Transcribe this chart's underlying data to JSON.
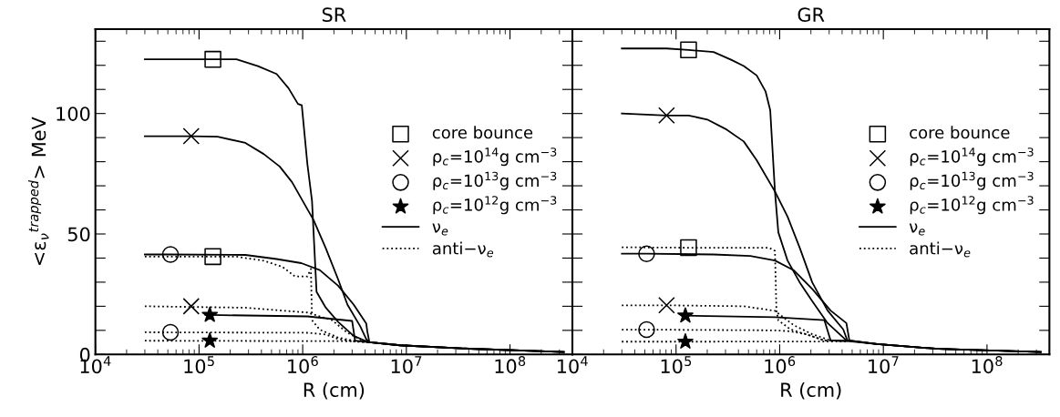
{
  "chart_data": [
    {
      "type": "line",
      "title": "SR",
      "xlabel": "R (cm)",
      "ylabel": "<ε$_{ν}$$^{trapped}$> MeV",
      "log": "x",
      "legend": "right",
      "grid": false,
      "xlim": [
        10000,
        400000000
      ],
      "ylim": [
        0,
        135
      ],
      "xticks": [
        {
          "value": 10000,
          "label": "10$^{4}$"
        },
        {
          "value": 100000,
          "label": "10$^{5}$"
        },
        {
          "value": 1000000,
          "label": "10$^{6}$"
        },
        {
          "value": 10000000,
          "label": "10$^{7}$"
        },
        {
          "value": 100000000,
          "label": "10$^{8}$"
        }
      ],
      "yticks": [
        0,
        {
          "value": 10,
          "label": null
        },
        {
          "value": 20,
          "label": null
        },
        {
          "value": 30,
          "label": null
        },
        {
          "value": 40,
          "label": null
        },
        50,
        {
          "value": 60,
          "label": null
        },
        {
          "value": 70,
          "label": null
        },
        {
          "value": 80,
          "label": null
        },
        {
          "value": 90,
          "label": null
        },
        100,
        {
          "value": 110,
          "label": null
        },
        {
          "value": 120,
          "label": null
        },
        {
          "value": 130,
          "label": null
        }
      ],
      "series": [
        {
          "type": "scatter",
          "name": "core bounce",
          "marker": "square",
          "color": "#000000",
          "x": [
            136000.0,
            136000.0
          ],
          "values": [
            122.5,
            40.6
          ]
        },
        {
          "type": "scatter",
          "name": "ρ$_{c}$=10$^{14}$g cm$^{−3}$",
          "marker": "cross",
          "color": "#000000",
          "x": [
            84000.0,
            84000.0
          ],
          "values": [
            90.6,
            20
          ]
        },
        {
          "type": "scatter",
          "name": "ρ$_{c}$=10$^{13}$g cm$^{−3}$",
          "marker": "circle",
          "color": "#000000",
          "x": [
            53000.0,
            53000.0
          ],
          "values": [
            41.5,
            9.2
          ]
        },
        {
          "type": "scatter",
          "name": "ρ$_{c}$=10$^{12}$g cm$^{−3}$",
          "marker": "star",
          "color": "#000000",
          "x": [
            127000.0,
            127000.0
          ],
          "values": [
            16.4,
            5.7
          ]
        },
        {
          "name": "ν$_{e}$",
          "line_style": "solid",
          "color": "#000000",
          "x": [
            30000.0,
            136000.0,
            230000.0,
            370000.0,
            560000.0,
            730000.0,
            900000.0,
            980000.0,
            1110000.0,
            1230000.0,
            1360000.0,
            1670000.0,
            2200000.0,
            3100000.0,
            4000000.0,
            4400000.0,
            8700000.0,
            34000000.0,
            330000000.0
          ],
          "values": [
            122.5,
            122.5,
            122.5,
            119.7,
            116.4,
            110.5,
            104,
            103.4,
            79,
            63.7,
            26,
            19.4,
            13.5,
            7.7,
            5.7,
            5.1,
            3.8,
            2.5,
            1.0
          ]
        },
        {
          "name": "anti−ν$_{e}$",
          "line_style": "dotted",
          "color": "#000000",
          "x": [
            30000.0,
            230000.0,
            420000.0,
            640000.0,
            840000.0,
            1110000.0,
            1200000.0,
            1230000.0,
            1460000.0,
            2200000.0,
            3300000.0,
            4400000.0
          ],
          "values": [
            40.6,
            40.6,
            38.9,
            36.3,
            32.4,
            32.4,
            35.5,
            14.2,
            10.3,
            7,
            5.5,
            5.1
          ]
        },
        {
          "line_style": "solid",
          "color": "#000000",
          "x": [
            30000.0,
            84000.0,
            151000.0,
            280000.0,
            420000.0,
            600000.0,
            790000.0,
            1040000.0,
            1270000.0,
            1670000.0,
            2200000.0,
            2700000.0,
            3600000.0,
            4100000.0,
            4400000.0,
            8700000.0,
            34000000.0,
            330000000.0
          ],
          "values": [
            90.6,
            90.6,
            90.4,
            87.8,
            83.2,
            78,
            71.5,
            62.4,
            55.9,
            44.1,
            31.1,
            20.7,
            11.6,
            6.4,
            5.1,
            3.8,
            2.5,
            1.0
          ]
        },
        {
          "line_style": "solid",
          "color": "#000000",
          "x": [
            30000.0,
            53000.0,
            280000.0,
            560000.0,
            970000.0,
            1460000.0,
            2200000.0,
            3100000.0,
            4100000.0,
            4200000.0,
            4400000.0,
            8700000.0,
            34000000.0,
            330000000.0
          ],
          "values": [
            41.5,
            41.5,
            41.3,
            39.6,
            37.9,
            35,
            28.5,
            20.7,
            12.9,
            9.6,
            5.1,
            3.8,
            2.5,
            1.0
          ]
        },
        {
          "line_style": "solid",
          "color": "#000000",
          "x": [
            115000.0,
            127000.0,
            1110000.0,
            3000000.0,
            3200000.0,
            4400000.0,
            8700000.0,
            34000000.0,
            330000000.0
          ],
          "values": [
            16.4,
            16.4,
            15.8,
            13.9,
            5.7,
            5.1,
            3.8,
            2.5,
            1.0
          ]
        },
        {
          "line_style": "dotted",
          "color": "#000000",
          "x": [
            30000.0,
            280000.0,
            1110000.0,
            1920000.0,
            2700000.0,
            3800000.0,
            4400000.0
          ],
          "values": [
            20,
            19.4,
            17.4,
            14.2,
            9,
            5.7,
            5.1
          ]
        },
        {
          "line_style": "dotted",
          "color": "#000000",
          "x": [
            30000.0,
            1110000.0,
            1670000.0,
            2200000.0,
            3300000.0,
            4400000.0
          ],
          "values": [
            9.2,
            9,
            8.3,
            6.4,
            5.3,
            5.1
          ]
        },
        {
          "line_style": "dotted",
          "color": "#000000",
          "x": [
            30000.0,
            3100000.0,
            4400000.0
          ],
          "values": [
            5.7,
            5.5,
            5.1
          ]
        }
      ]
    },
    {
      "type": "line",
      "title": "GR",
      "xlabel": "R (cm)",
      "log": "x",
      "legend": "right",
      "grid": false,
      "tick_labels": "x",
      "xlim": [
        10000,
        400000000
      ],
      "ylim": [
        0,
        135
      ],
      "xticks": [
        {
          "value": 10000,
          "label": "10$^{4}$"
        },
        {
          "value": 100000,
          "label": "10$^{5}$"
        },
        {
          "value": 1000000,
          "label": "10$^{6}$"
        },
        {
          "value": 10000000,
          "label": "10$^{7}$"
        },
        {
          "value": 100000000,
          "label": "10$^{8}$"
        }
      ],
      "yticks": [
        0,
        {
          "value": 10,
          "label": null
        },
        {
          "value": 20,
          "label": null
        },
        {
          "value": 30,
          "label": null
        },
        {
          "value": 40,
          "label": null
        },
        50,
        {
          "value": 60,
          "label": null
        },
        {
          "value": 70,
          "label": null
        },
        {
          "value": 80,
          "label": null
        },
        {
          "value": 90,
          "label": null
        },
        100,
        {
          "value": 110,
          "label": null
        },
        {
          "value": 120,
          "label": null
        },
        {
          "value": 130,
          "label": null
        }
      ],
      "series": [
        {
          "type": "scatter",
          "name": "core bounce",
          "marker": "square",
          "color": "#000000",
          "x": [
            132000.0,
            132000.0
          ],
          "values": [
            126.4,
            44.3
          ]
        },
        {
          "type": "scatter",
          "name": "ρ$_{c}$=10$^{14}$g cm$^{−3}$",
          "marker": "cross",
          "color": "#000000",
          "x": [
            81000.0,
            81000.0
          ],
          "values": [
            99.2,
            20.4
          ]
        },
        {
          "type": "scatter",
          "name": "ρ$_{c}$=10$^{13}$g cm$^{−3}$",
          "marker": "circle",
          "color": "#000000",
          "x": [
            52000.0,
            52000.0
          ],
          "values": [
            41.8,
            10.3
          ]
        },
        {
          "type": "scatter",
          "name": "ρ$_{c}$=10$^{12}$g cm$^{−3}$",
          "marker": "star",
          "color": "#000000",
          "x": [
            123000.0,
            123000.0
          ],
          "values": [
            16.1,
            5.3
          ]
        },
        {
          "name": "ν$_{e}$",
          "line_style": "solid",
          "color": "#000000",
          "x": [
            30000.0,
            81000.0,
            132000.0,
            230000.0,
            340000.0,
            450000.0,
            600000.0,
            730000.0,
            810000.0,
            840000.0,
            900000.0,
            970000.0,
            1190000.0,
            1560000.0,
            2060000.0,
            2900000.0,
            4400000.0,
            8700000.0,
            34000000.0,
            330000000.0
          ],
          "values": [
            127,
            127,
            126.4,
            125.5,
            122.3,
            119.7,
            115.8,
            109.2,
            101.4,
            89.7,
            67.6,
            50.7,
            39,
            29.9,
            22.1,
            13,
            5.8,
            4.3,
            2.3,
            1.0
          ]
        },
        {
          "name": "anti−ν$_{e}$",
          "line_style": "dotted",
          "color": "#000000",
          "x": [
            30000.0,
            132000.0,
            790000.0,
            900000.0,
            930000.0,
            970000.0,
            1270000.0,
            1790000.0,
            2700000.0,
            4500000.0
          ],
          "values": [
            44.5,
            44.3,
            44.3,
            43,
            18.1,
            14.2,
            10.4,
            8.4,
            5.8,
            5.6
          ]
        },
        {
          "line_style": "solid",
          "color": "#000000",
          "x": [
            30000.0,
            81000.0,
            132000.0,
            200000.0,
            300000.0,
            450000.0,
            600000.0,
            900000.0,
            1190000.0,
            1560000.0,
            2060000.0,
            2900000.0,
            4100000.0,
            4500000.0,
            8700000.0,
            34000000.0,
            330000000.0
          ],
          "values": [
            100,
            99.2,
            99.2,
            97.5,
            93.6,
            88.4,
            80.6,
            67.6,
            57.2,
            44.3,
            29.9,
            18.2,
            10.4,
            5.8,
            4.3,
            2.3,
            1.0
          ]
        },
        {
          "line_style": "solid",
          "color": "#000000",
          "x": [
            30000.0,
            52000.0,
            230000.0,
            520000.0,
            900000.0,
            1360000.0,
            2060000.0,
            3100000.0,
            4400000.0,
            4700000.0,
            8700000.0,
            34000000.0,
            330000000.0
          ],
          "values": [
            41.8,
            41.8,
            41.5,
            40.9,
            39,
            35,
            27.2,
            18.2,
            13,
            5.8,
            4.3,
            2.3,
            1.0
          ]
        },
        {
          "line_style": "solid",
          "color": "#000000",
          "x": [
            115000.0,
            123000.0,
            900000.0,
            2700000.0,
            3100000.0,
            4500000.0,
            8700000.0,
            34000000.0,
            330000000.0
          ],
          "values": [
            16.1,
            16.1,
            15.5,
            14.2,
            5.8,
            5.6,
            4.3,
            2.3,
            1.0
          ]
        },
        {
          "line_style": "dotted",
          "color": "#000000",
          "x": [
            30000.0,
            81000.0,
            450000.0,
            900000.0,
            1360000.0,
            2060000.0,
            3100000.0,
            4500000.0
          ],
          "values": [
            20.4,
            20.4,
            20,
            18.1,
            12.2,
            8.4,
            5.8,
            5.6
          ]
        },
        {
          "line_style": "dotted",
          "color": "#000000",
          "x": [
            30000.0,
            52000.0,
            900000.0,
            1270000.0,
            1790000.0,
            2700000.0,
            4500000.0
          ],
          "values": [
            10.3,
            10.3,
            10,
            9.6,
            8.4,
            5.8,
            5.6
          ]
        },
        {
          "line_style": "dotted",
          "color": "#000000",
          "x": [
            30000.0,
            123000.0,
            4500000.0
          ],
          "values": [
            5.3,
            5.3,
            5.4
          ]
        }
      ]
    }
  ]
}
